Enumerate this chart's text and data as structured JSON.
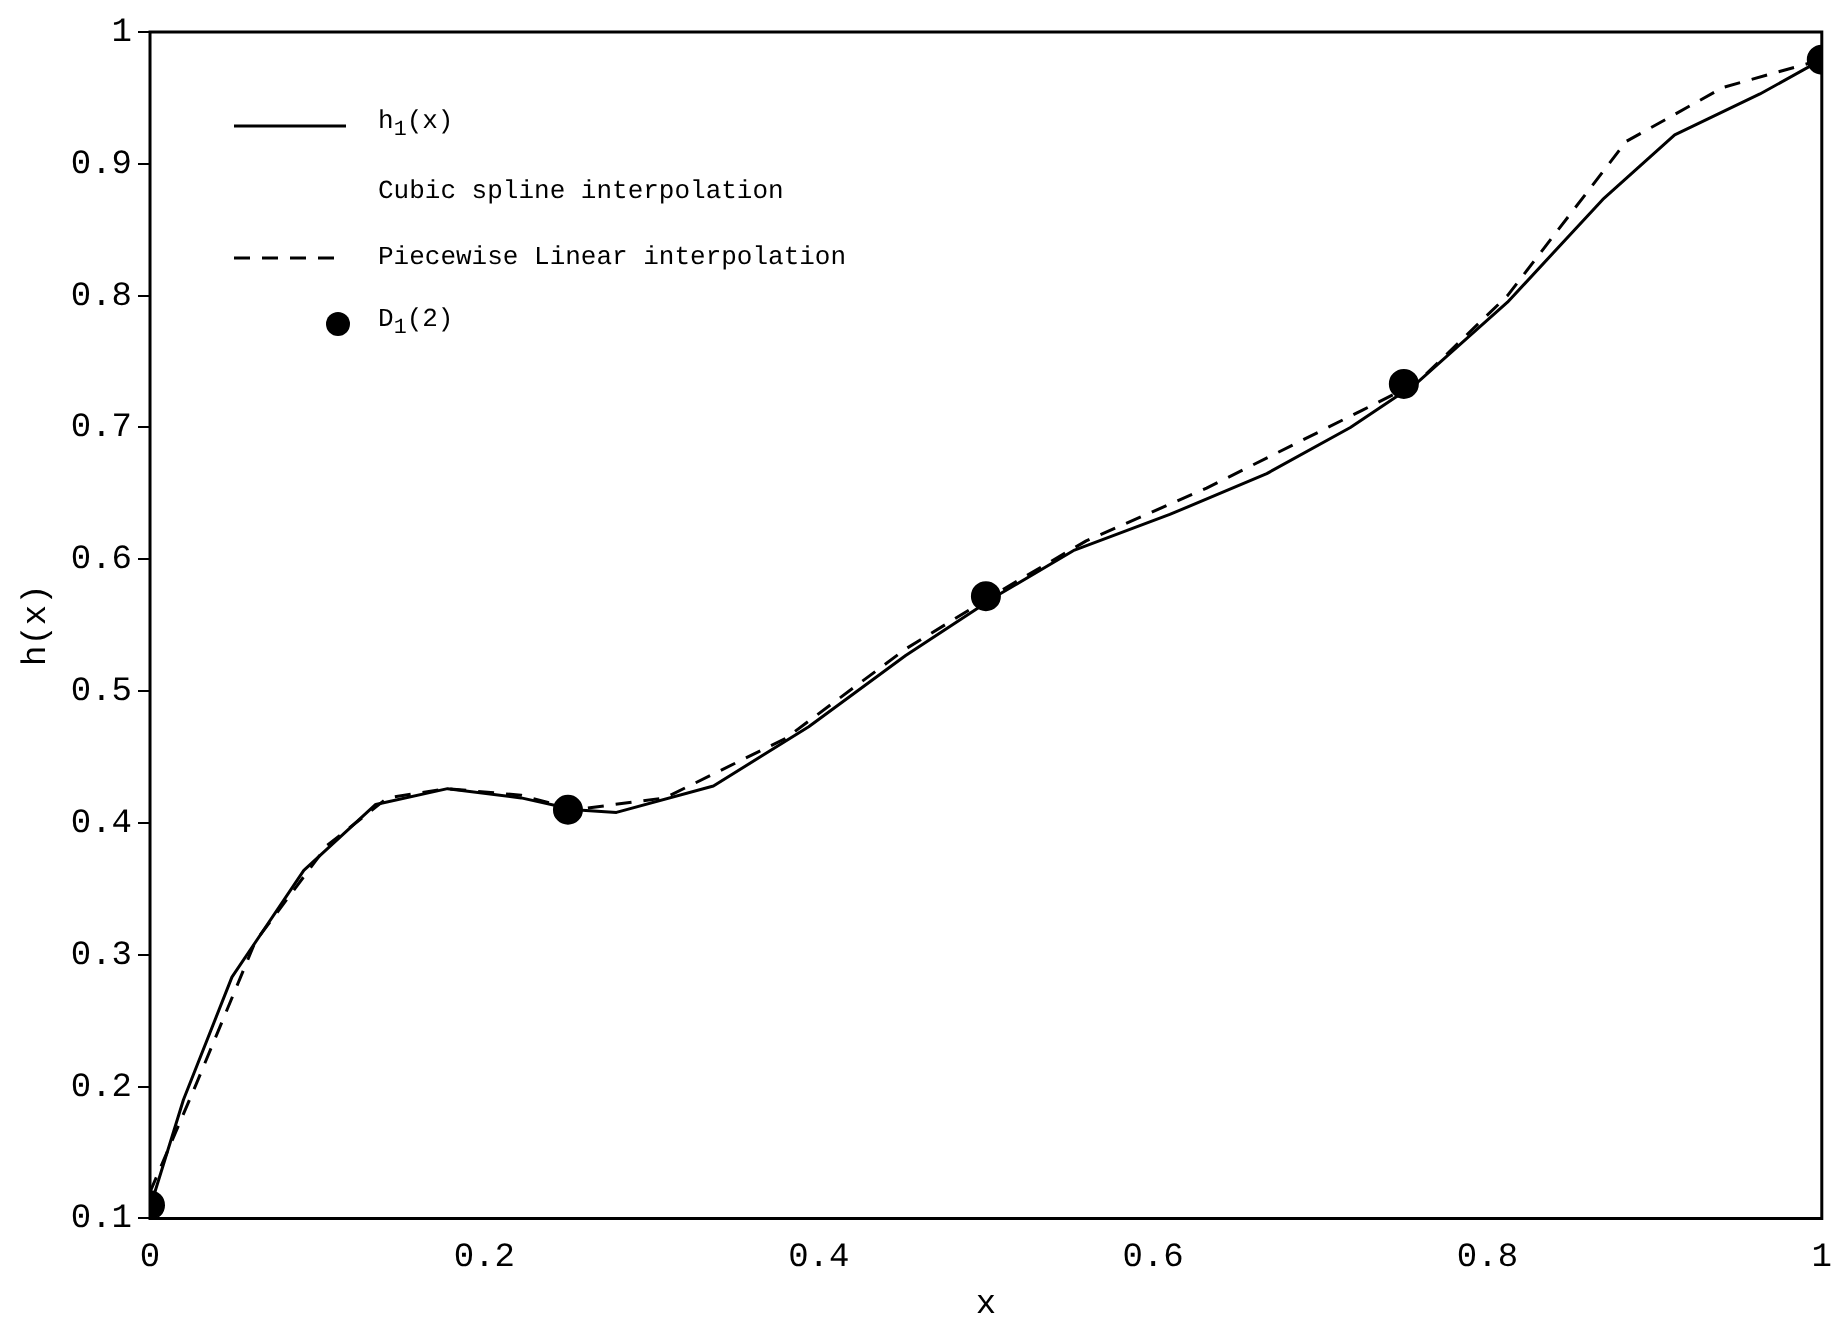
{
  "chart_data": {
    "type": "line",
    "xlabel": "x",
    "ylabel": "h(x)",
    "xlim": [
      0,
      1
    ],
    "ylim": [
      0.1,
      1
    ],
    "xticks": [
      0,
      0.2,
      0.4,
      0.6,
      0.8,
      1
    ],
    "yticks": [
      0.1,
      0.2,
      0.3,
      0.4,
      0.5,
      0.6,
      0.7,
      0.8,
      0.9,
      1
    ],
    "grid": false,
    "legend": "top left",
    "annotations": [
      "Cubic spline interpolation"
    ],
    "series": [
      {
        "name": "h$_{1}$(x)",
        "color": "#000000",
        "line_style": "solid",
        "marker": "none",
        "x": [
          0,
          0.02,
          0.049,
          0.092,
          0.135,
          0.178,
          0.222,
          0.254,
          0.279,
          0.337,
          0.394,
          0.452,
          0.506,
          0.553,
          0.61,
          0.668,
          0.718,
          0.758,
          0.812,
          0.869,
          0.912,
          0.963,
          1
        ],
        "values": [
          0.108,
          0.19,
          0.283,
          0.364,
          0.414,
          0.426,
          0.419,
          0.41,
          0.408,
          0.428,
          0.473,
          0.527,
          0.572,
          0.607,
          0.634,
          0.665,
          0.7,
          0.734,
          0.795,
          0.873,
          0.922,
          0.953,
          0.979
        ]
      },
      {
        "name": "Piecewise Linear interpolation",
        "color": "#000000",
        "line_style": "dashed",
        "marker": "none",
        "x": [
          0,
          0.027,
          0.063,
          0.106,
          0.142,
          0.178,
          0.222,
          0.254,
          0.308,
          0.38,
          0.452,
          0.506,
          0.56,
          0.632,
          0.725,
          0.758,
          0.812,
          0.883,
          0.941,
          1
        ],
        "values": [
          0.12,
          0.2,
          0.31,
          0.383,
          0.419,
          0.426,
          0.421,
          0.41,
          0.419,
          0.464,
          0.532,
          0.574,
          0.614,
          0.654,
          0.713,
          0.734,
          0.8,
          0.917,
          0.958,
          0.979
        ]
      },
      {
        "name": "D$_{1}$(2)",
        "type": "scatter",
        "color": "#000000",
        "marker": "circle",
        "x": [
          0,
          0.25,
          0.5,
          0.75,
          1
        ],
        "values": [
          0.11,
          0.41,
          0.572,
          0.733,
          0.979
        ]
      }
    ]
  }
}
